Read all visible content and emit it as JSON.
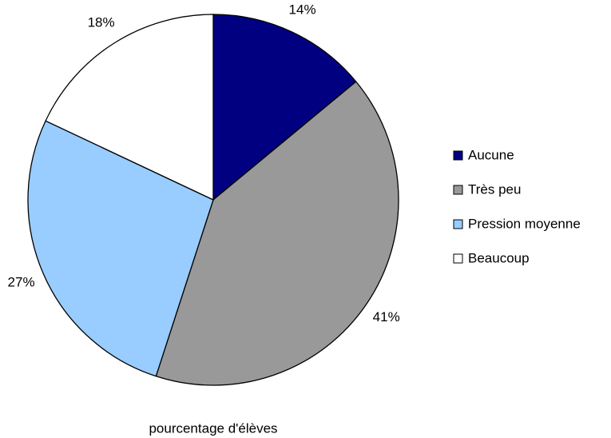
{
  "chart_data": {
    "type": "pie",
    "title": "pourcentage d'élèves",
    "categories": [
      "Aucune",
      "Très peu",
      "Pression moyenne",
      "Beaucoup"
    ],
    "values": [
      14,
      41,
      27,
      18
    ],
    "value_labels": [
      "14%",
      "41%",
      "27%",
      "18%"
    ],
    "colors": [
      "#000080",
      "#999999",
      "#99ccff",
      "#ffffff"
    ],
    "legend": "right"
  }
}
